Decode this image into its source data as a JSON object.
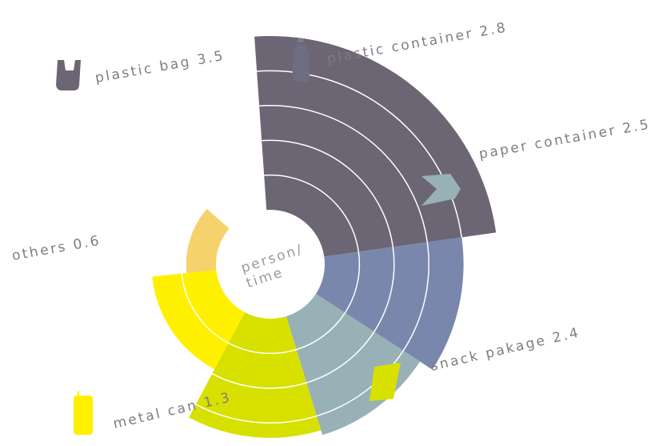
{
  "chart_data": {
    "type": "polar-bar",
    "title": "",
    "center_label": [
      "person/",
      "time"
    ],
    "categories": [
      "plastic bag",
      "plastic container",
      "paper container",
      "snack pakage",
      "metal can",
      "others"
    ],
    "values": [
      3.5,
      2.8,
      2.5,
      2.4,
      1.3,
      0.6
    ],
    "labels": [
      "plastic bag 3.5",
      "plastic container 2.8",
      "paper container 2.5",
      "snack pakage 2.4",
      "metal can 1.3",
      "others 0.6"
    ],
    "colors": [
      "#6b6574",
      "#7a87ac",
      "#98b1b6",
      "#d8e000",
      "#fff000",
      "#f5d26b"
    ],
    "icons": [
      "plastic-bag-icon",
      "plastic-bottle-icon",
      "paper-container-icon",
      "snack-package-icon",
      "metal-can-icon",
      null
    ]
  }
}
